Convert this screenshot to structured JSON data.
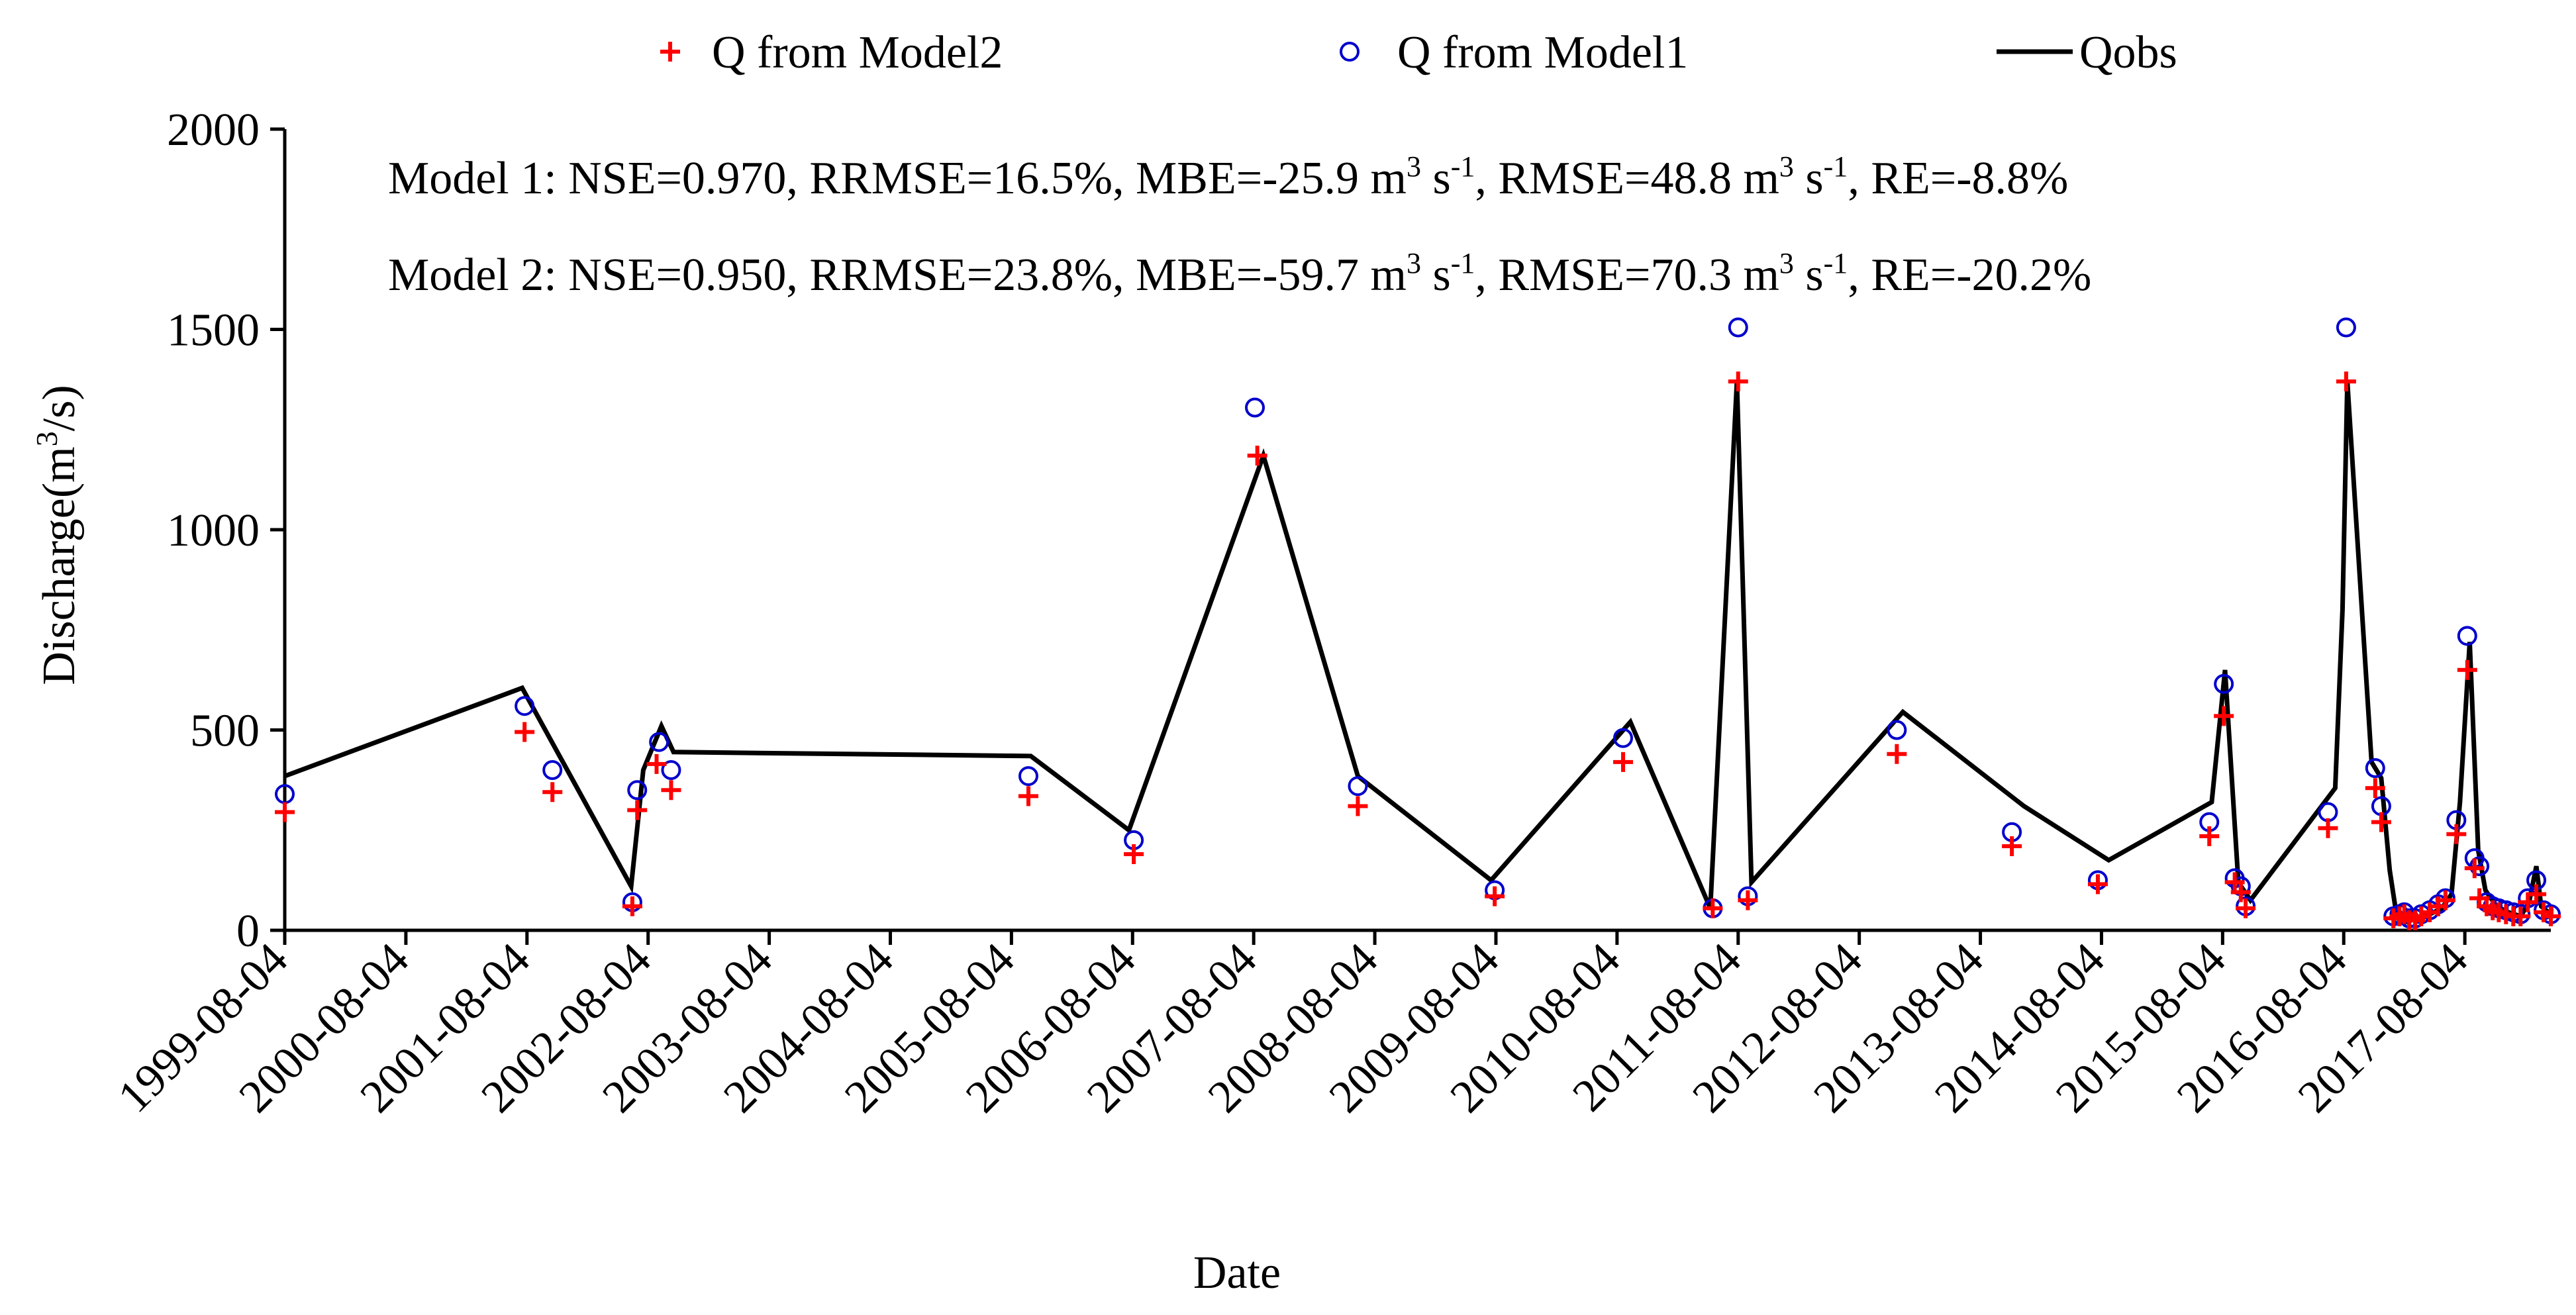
{
  "chart_data": {
    "type": "line+scatter",
    "xlabel": "Date",
    "ylabel": "Discharge(m³/s)",
    "ylabel_parts": [
      "Discharge(m",
      "3",
      "/s)"
    ],
    "ylim": [
      0,
      2000
    ],
    "y_ticks": [
      0,
      500,
      1000,
      1500,
      2000
    ],
    "x_range_years": [
      1999.59,
      2018.3
    ],
    "x_ticks": [
      {
        "label": "1999-08-04",
        "t": 1999.59
      },
      {
        "label": "2000-08-04",
        "t": 2000.59
      },
      {
        "label": "2001-08-04",
        "t": 2001.59
      },
      {
        "label": "2002-08-04",
        "t": 2002.59
      },
      {
        "label": "2003-08-04",
        "t": 2003.59
      },
      {
        "label": "2004-08-04",
        "t": 2004.59
      },
      {
        "label": "2005-08-04",
        "t": 2005.59
      },
      {
        "label": "2006-08-04",
        "t": 2006.59
      },
      {
        "label": "2007-08-04",
        "t": 2007.59
      },
      {
        "label": "2008-08-04",
        "t": 2008.59
      },
      {
        "label": "2009-08-04",
        "t": 2009.59
      },
      {
        "label": "2010-08-04",
        "t": 2010.59
      },
      {
        "label": "2011-08-04",
        "t": 2011.59
      },
      {
        "label": "2012-08-04",
        "t": 2012.59
      },
      {
        "label": "2013-08-04",
        "t": 2013.59
      },
      {
        "label": "2014-08-04",
        "t": 2014.59
      },
      {
        "label": "2015-08-04",
        "t": 2015.59
      },
      {
        "label": "2016-08-04",
        "t": 2016.59
      },
      {
        "label": "2017-08-04",
        "t": 2017.59
      }
    ],
    "legend": {
      "placement": "top",
      "entries": [
        {
          "key": "model2",
          "label": "Q from Model2",
          "marker": "plus",
          "color": "#ff0000"
        },
        {
          "key": "model1",
          "label": "Q from Model1",
          "marker": "circle",
          "color": "#0000cc"
        },
        {
          "key": "qobs",
          "label": "Qobs",
          "marker": "line",
          "color": "#000000"
        }
      ]
    },
    "annotations": [
      {
        "parts": [
          {
            "text": "Model 1: NSE=0.970, RRMSE=16.5%, MBE=-25.9 m"
          },
          {
            "text": "3",
            "sup": true
          },
          {
            "text": " s"
          },
          {
            "text": "-1",
            "sup": true
          },
          {
            "text": ", RMSE=48.8 m"
          },
          {
            "text": "3",
            "sup": true
          },
          {
            "text": " s"
          },
          {
            "text": "-1",
            "sup": true
          },
          {
            "text": ", RE=-8.8%"
          }
        ]
      },
      {
        "parts": [
          {
            "text": "Model 2: NSE=0.950, RRMSE=23.8%, MBE=-59.7 m"
          },
          {
            "text": "3",
            "sup": true
          },
          {
            "text": " s"
          },
          {
            "text": "-1",
            "sup": true
          },
          {
            "text": ", RMSE=70.3 m"
          },
          {
            "text": "3",
            "sup": true
          },
          {
            "text": " s"
          },
          {
            "text": "-1",
            "sup": true
          },
          {
            "text": ", RE=-20.2%"
          }
        ]
      }
    ],
    "series": [
      {
        "name": "Qobs",
        "style": "line",
        "color": "#000000",
        "points": [
          [
            1999.59,
            385
          ],
          [
            2001.55,
            605
          ],
          [
            2002.45,
            110
          ],
          [
            2002.55,
            400
          ],
          [
            2002.7,
            510
          ],
          [
            2002.8,
            445
          ],
          [
            2005.75,
            435
          ],
          [
            2006.56,
            250
          ],
          [
            2007.67,
            1185
          ],
          [
            2008.45,
            385
          ],
          [
            2009.55,
            125
          ],
          [
            2010.7,
            520
          ],
          [
            2011.36,
            55
          ],
          [
            2011.58,
            1370
          ],
          [
            2011.7,
            120
          ],
          [
            2012.95,
            545
          ],
          [
            2013.95,
            310
          ],
          [
            2014.65,
            175
          ],
          [
            2015.5,
            320
          ],
          [
            2015.61,
            650
          ],
          [
            2015.72,
            120
          ],
          [
            2015.82,
            75
          ],
          [
            2016.52,
            355
          ],
          [
            2016.58,
            800
          ],
          [
            2016.62,
            1370
          ],
          [
            2016.82,
            420
          ],
          [
            2016.9,
            380
          ],
          [
            2016.97,
            150
          ],
          [
            2017.03,
            30
          ],
          [
            2017.1,
            20
          ],
          [
            2017.2,
            30
          ],
          [
            2017.3,
            40
          ],
          [
            2017.4,
            55
          ],
          [
            2017.48,
            90
          ],
          [
            2017.55,
            320
          ],
          [
            2017.63,
            720
          ],
          [
            2017.7,
            200
          ],
          [
            2017.76,
            100
          ],
          [
            2017.85,
            60
          ],
          [
            2017.95,
            45
          ],
          [
            2018.05,
            35
          ],
          [
            2018.12,
            70
          ],
          [
            2018.18,
            160
          ],
          [
            2018.22,
            60
          ],
          [
            2018.3,
            40
          ]
        ]
      },
      {
        "name": "Q from Model1",
        "style": "circle",
        "color": "#0000cc",
        "points": [
          [
            1999.59,
            340
          ],
          [
            2001.57,
            560
          ],
          [
            2001.8,
            400
          ],
          [
            2002.46,
            70
          ],
          [
            2002.5,
            350
          ],
          [
            2002.68,
            470
          ],
          [
            2002.78,
            400
          ],
          [
            2005.73,
            385
          ],
          [
            2006.6,
            225
          ],
          [
            2007.6,
            1305
          ],
          [
            2008.45,
            360
          ],
          [
            2009.58,
            100
          ],
          [
            2010.64,
            480
          ],
          [
            2011.38,
            55
          ],
          [
            2011.59,
            1505
          ],
          [
            2011.67,
            85
          ],
          [
            2012.9,
            500
          ],
          [
            2013.85,
            245
          ],
          [
            2014.56,
            125
          ],
          [
            2015.48,
            270
          ],
          [
            2015.6,
            615
          ],
          [
            2015.69,
            130
          ],
          [
            2015.74,
            110
          ],
          [
            2015.78,
            60
          ],
          [
            2016.46,
            295
          ],
          [
            2016.61,
            1505
          ],
          [
            2016.85,
            405
          ],
          [
            2016.9,
            310
          ],
          [
            2017.0,
            35
          ],
          [
            2017.05,
            40
          ],
          [
            2017.09,
            45
          ],
          [
            2017.13,
            30
          ],
          [
            2017.18,
            30
          ],
          [
            2017.23,
            40
          ],
          [
            2017.3,
            50
          ],
          [
            2017.37,
            65
          ],
          [
            2017.43,
            80
          ],
          [
            2017.52,
            275
          ],
          [
            2017.61,
            735
          ],
          [
            2017.67,
            180
          ],
          [
            2017.71,
            160
          ],
          [
            2017.77,
            70
          ],
          [
            2017.82,
            60
          ],
          [
            2017.87,
            55
          ],
          [
            2017.93,
            50
          ],
          [
            2017.99,
            45
          ],
          [
            2018.05,
            40
          ],
          [
            2018.11,
            80
          ],
          [
            2018.18,
            125
          ],
          [
            2018.24,
            50
          ],
          [
            2018.3,
            40
          ]
        ]
      },
      {
        "name": "Q from Model2",
        "style": "plus",
        "color": "#ff0000",
        "points": [
          [
            1999.59,
            295
          ],
          [
            2001.57,
            495
          ],
          [
            2001.8,
            345
          ],
          [
            2002.46,
            60
          ],
          [
            2002.5,
            300
          ],
          [
            2002.66,
            415
          ],
          [
            2002.78,
            350
          ],
          [
            2005.73,
            335
          ],
          [
            2006.6,
            190
          ],
          [
            2007.62,
            1185
          ],
          [
            2008.45,
            310
          ],
          [
            2009.58,
            85
          ],
          [
            2010.64,
            420
          ],
          [
            2011.38,
            55
          ],
          [
            2011.59,
            1370
          ],
          [
            2011.67,
            75
          ],
          [
            2012.9,
            440
          ],
          [
            2013.85,
            210
          ],
          [
            2014.56,
            115
          ],
          [
            2015.48,
            235
          ],
          [
            2015.6,
            535
          ],
          [
            2015.69,
            120
          ],
          [
            2015.74,
            95
          ],
          [
            2015.78,
            55
          ],
          [
            2016.46,
            255
          ],
          [
            2016.61,
            1370
          ],
          [
            2016.85,
            355
          ],
          [
            2016.9,
            270
          ],
          [
            2017.0,
            30
          ],
          [
            2017.05,
            35
          ],
          [
            2017.09,
            40
          ],
          [
            2017.13,
            25
          ],
          [
            2017.18,
            25
          ],
          [
            2017.23,
            35
          ],
          [
            2017.3,
            45
          ],
          [
            2017.37,
            60
          ],
          [
            2017.43,
            75
          ],
          [
            2017.52,
            240
          ],
          [
            2017.61,
            650
          ],
          [
            2017.67,
            155
          ],
          [
            2017.71,
            80
          ],
          [
            2017.77,
            60
          ],
          [
            2017.82,
            50
          ],
          [
            2017.87,
            45
          ],
          [
            2017.93,
            40
          ],
          [
            2017.99,
            35
          ],
          [
            2018.05,
            35
          ],
          [
            2018.11,
            70
          ],
          [
            2018.18,
            90
          ],
          [
            2018.24,
            45
          ],
          [
            2018.3,
            35
          ]
        ]
      }
    ]
  }
}
